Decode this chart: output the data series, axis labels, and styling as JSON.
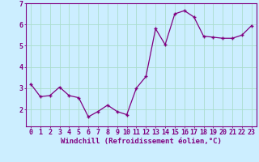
{
  "x": [
    0,
    1,
    2,
    3,
    4,
    5,
    6,
    7,
    8,
    9,
    10,
    11,
    12,
    13,
    14,
    15,
    16,
    17,
    18,
    19,
    20,
    21,
    22,
    23
  ],
  "y": [
    3.2,
    2.6,
    2.65,
    3.05,
    2.65,
    2.55,
    1.65,
    1.9,
    2.2,
    1.9,
    1.75,
    3.0,
    3.55,
    5.8,
    5.05,
    6.5,
    6.65,
    6.35,
    5.45,
    5.4,
    5.35,
    5.35,
    5.5,
    5.95
  ],
  "line_color": "#800080",
  "marker": "o",
  "marker_size": 2.0,
  "bg_color": "#cceeff",
  "grid_color": "#aaddcc",
  "xlabel": "Windchill (Refroidissement éolien,°C)",
  "xlabel_color": "#800080",
  "tick_color": "#800080",
  "axis_color": "#800080",
  "ylim_min": 1.2,
  "ylim_max": 7.0,
  "xlim_min": -0.5,
  "xlim_max": 23.5,
  "yticks": [
    2,
    3,
    4,
    5,
    6,
    7
  ],
  "xticks": [
    0,
    1,
    2,
    3,
    4,
    5,
    6,
    7,
    8,
    9,
    10,
    11,
    12,
    13,
    14,
    15,
    16,
    17,
    18,
    19,
    20,
    21,
    22,
    23
  ],
  "label_fontsize": 6.5,
  "tick_fontsize": 6.0
}
